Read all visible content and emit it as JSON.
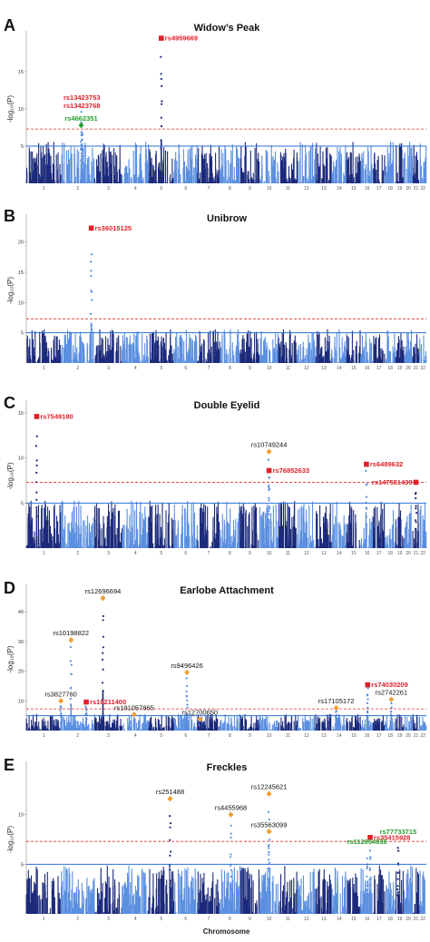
{
  "colors": {
    "dark_chr": "#1b2a7a",
    "light_chr": "#5b8fe0",
    "genomewide_line": "#e0302a",
    "suggestive_line": "#2c6fd8",
    "red": "#e0202a",
    "green": "#24a02c",
    "orange": "#f0a030",
    "black": "#111111"
  },
  "chart_data": [
    {
      "type": "scatter",
      "letter": "A",
      "title": "Widow’s Peak",
      "ylabel": "-log₁₀(P)",
      "yticks": [
        "5",
        "10",
        "15"
      ],
      "x_ticks": [
        "1",
        "2",
        "3",
        "4",
        "5",
        "6",
        "7",
        "8",
        "9",
        "10",
        "11",
        "12",
        "13",
        "14",
        "15",
        "16",
        "17",
        "18",
        "19",
        "20",
        "21",
        "22"
      ],
      "ylim": [
        0,
        20
      ],
      "genomewide": 7.3,
      "suggestive": 5,
      "snps": [
        {
          "id": "rs4959669",
          "chr": 5,
          "pos": 0.5,
          "y": 19.5,
          "color": "red",
          "shape": "square"
        },
        {
          "id": "rs13423753",
          "chr": 2,
          "pos": 0.62,
          "y": 10.6,
          "color": "red",
          "shape": "none"
        },
        {
          "id": "rs13423768",
          "chr": 2,
          "pos": 0.62,
          "y": 9.5,
          "color": "red",
          "shape": "none"
        },
        {
          "id": "rs4662351",
          "chr": 2,
          "pos": 0.6,
          "y": 7.8,
          "color": "green",
          "shape": "diamond"
        }
      ]
    },
    {
      "type": "scatter",
      "letter": "B",
      "title": "Unibrow",
      "ylabel": "-log₁₀(P)",
      "yticks": [
        "5",
        "10",
        "15",
        "20"
      ],
      "x_ticks": [
        "1",
        "2",
        "3",
        "4",
        "5",
        "6",
        "7",
        "8",
        "9",
        "10",
        "11",
        "12",
        "13",
        "14",
        "15",
        "16",
        "17",
        "18",
        "19",
        "20",
        "21",
        "22"
      ],
      "ylim": [
        0,
        24
      ],
      "genomewide": 7.3,
      "suggestive": 5,
      "snps": [
        {
          "id": "rs36015125",
          "chr": 2,
          "pos": 0.9,
          "y": 22.3,
          "color": "red",
          "shape": "square"
        }
      ]
    },
    {
      "type": "scatter",
      "letter": "C",
      "title": "Double Eyelid",
      "ylabel": "-log₁₀(P)",
      "yticks": [
        "5",
        "10",
        "15"
      ],
      "x_ticks": [
        "1",
        "2",
        "3",
        "4",
        "5",
        "6",
        "7",
        "8",
        "9",
        "10",
        "11",
        "12",
        "13",
        "14",
        "15",
        "16",
        "17",
        "18",
        "19",
        "20",
        "21",
        "22"
      ],
      "ylim": [
        0,
        16
      ],
      "genomewide": 7.3,
      "suggestive": 5,
      "snps": [
        {
          "id": "rs7549180",
          "chr": 1,
          "pos": 0.3,
          "y": 14.6,
          "color": "red",
          "shape": "square"
        },
        {
          "id": "rs10749244",
          "chr": 10,
          "pos": 0.5,
          "y": 10.7,
          "color": "black",
          "shape": "diamond"
        },
        {
          "id": "rs76852633",
          "chr": 10,
          "pos": 0.5,
          "y": 8.6,
          "color": "red",
          "shape": "square"
        },
        {
          "id": "rs6489632",
          "chr": 16,
          "pos": 0.45,
          "y": 9.3,
          "color": "red",
          "shape": "square"
        },
        {
          "id": "rs147581439",
          "chr": 21,
          "pos": 0.5,
          "y": 7.3,
          "color": "red",
          "shape": "square"
        }
      ]
    },
    {
      "type": "scatter",
      "letter": "D",
      "title": "Earlobe Attachment",
      "ylabel": "-log₁₀(P)",
      "yticks": [
        "10",
        "20",
        "30",
        "40"
      ],
      "x_ticks": [
        "1",
        "2",
        "3",
        "4",
        "5",
        "6",
        "7",
        "8",
        "9",
        "10",
        "11",
        "12",
        "13",
        "14",
        "15",
        "16",
        "17",
        "18",
        "19",
        "20",
        "21",
        "22"
      ],
      "ylim": [
        0,
        48
      ],
      "genomewide": 7.3,
      "suggestive": 5,
      "snps": [
        {
          "id": "rs12696694",
          "chr": 3,
          "pos": 0.3,
          "y": 44.6,
          "color": "black",
          "shape": "diamond"
        },
        {
          "id": "rs10198822",
          "chr": 2,
          "pos": 0.3,
          "y": 30.5,
          "color": "black",
          "shape": "diamond"
        },
        {
          "id": "rs9496426",
          "chr": 6,
          "pos": 0.55,
          "y": 19.6,
          "color": "black",
          "shape": "diamond"
        },
        {
          "id": "rs3827760",
          "chr": 2,
          "pos": 0.0,
          "y": 10.0,
          "color": "black",
          "shape": "diamond"
        },
        {
          "id": "rs10211400",
          "chr": 2,
          "pos": 0.75,
          "y": 9.6,
          "color": "red",
          "shape": "square"
        },
        {
          "id": "rs191057865",
          "chr": 4,
          "pos": 0.45,
          "y": 5.4,
          "color": "black",
          "shape": "diamond"
        },
        {
          "id": "rs12700650",
          "chr": 7,
          "pos": 0.1,
          "y": 3.8,
          "color": "black",
          "shape": "diamond"
        },
        {
          "id": "rs17105172",
          "chr": 14,
          "pos": 0.3,
          "y": 7.6,
          "color": "black",
          "shape": "diamond"
        },
        {
          "id": "rs74030209",
          "chr": 16,
          "pos": 0.55,
          "y": 15.4,
          "color": "red",
          "shape": "square"
        },
        {
          "id": "rs2742261",
          "chr": 18,
          "pos": 0.6,
          "y": 10.5,
          "color": "black",
          "shape": "diamond"
        }
      ]
    },
    {
      "type": "scatter",
      "letter": "E",
      "title": "Freckles",
      "ylabel": "-log₁₀(P)",
      "yticks": [
        "5",
        "10"
      ],
      "x_ticks": [
        "1",
        "2",
        "3",
        "4",
        "5",
        "6",
        "7",
        "8",
        "9",
        "10",
        "11",
        "12",
        "13",
        "14",
        "15",
        "16",
        "17",
        "18",
        "19",
        "20",
        "21",
        "22"
      ],
      "xlabel": "Chromosome",
      "ylim": [
        0,
        15
      ],
      "genomewide": 7.3,
      "suggestive": 5,
      "snps": [
        {
          "id": "rs251488",
          "chr": 5,
          "pos": 0.85,
          "y": 11.6,
          "color": "black",
          "shape": "diamond"
        },
        {
          "id": "rs12245621",
          "chr": 10,
          "pos": 0.5,
          "y": 12.1,
          "color": "black",
          "shape": "diamond"
        },
        {
          "id": "rs4455968",
          "chr": 8,
          "pos": 0.55,
          "y": 10.0,
          "color": "black",
          "shape": "diamond"
        },
        {
          "id": "rs35563099",
          "chr": 10,
          "pos": 0.5,
          "y": 8.3,
          "color": "black",
          "shape": "diamond"
        },
        {
          "id": "rs35415928",
          "chr": 16,
          "pos": 0.75,
          "y": 7.7,
          "color": "red",
          "shape": "square"
        },
        {
          "id": "rs77733715",
          "chr": 19,
          "pos": 0.3,
          "y": 7.6,
          "color": "green",
          "shape": "none"
        },
        {
          "id": "rs112854936",
          "chr": 16,
          "pos": 0.5,
          "y": 6.6,
          "color": "green",
          "shape": "none"
        }
      ]
    }
  ]
}
